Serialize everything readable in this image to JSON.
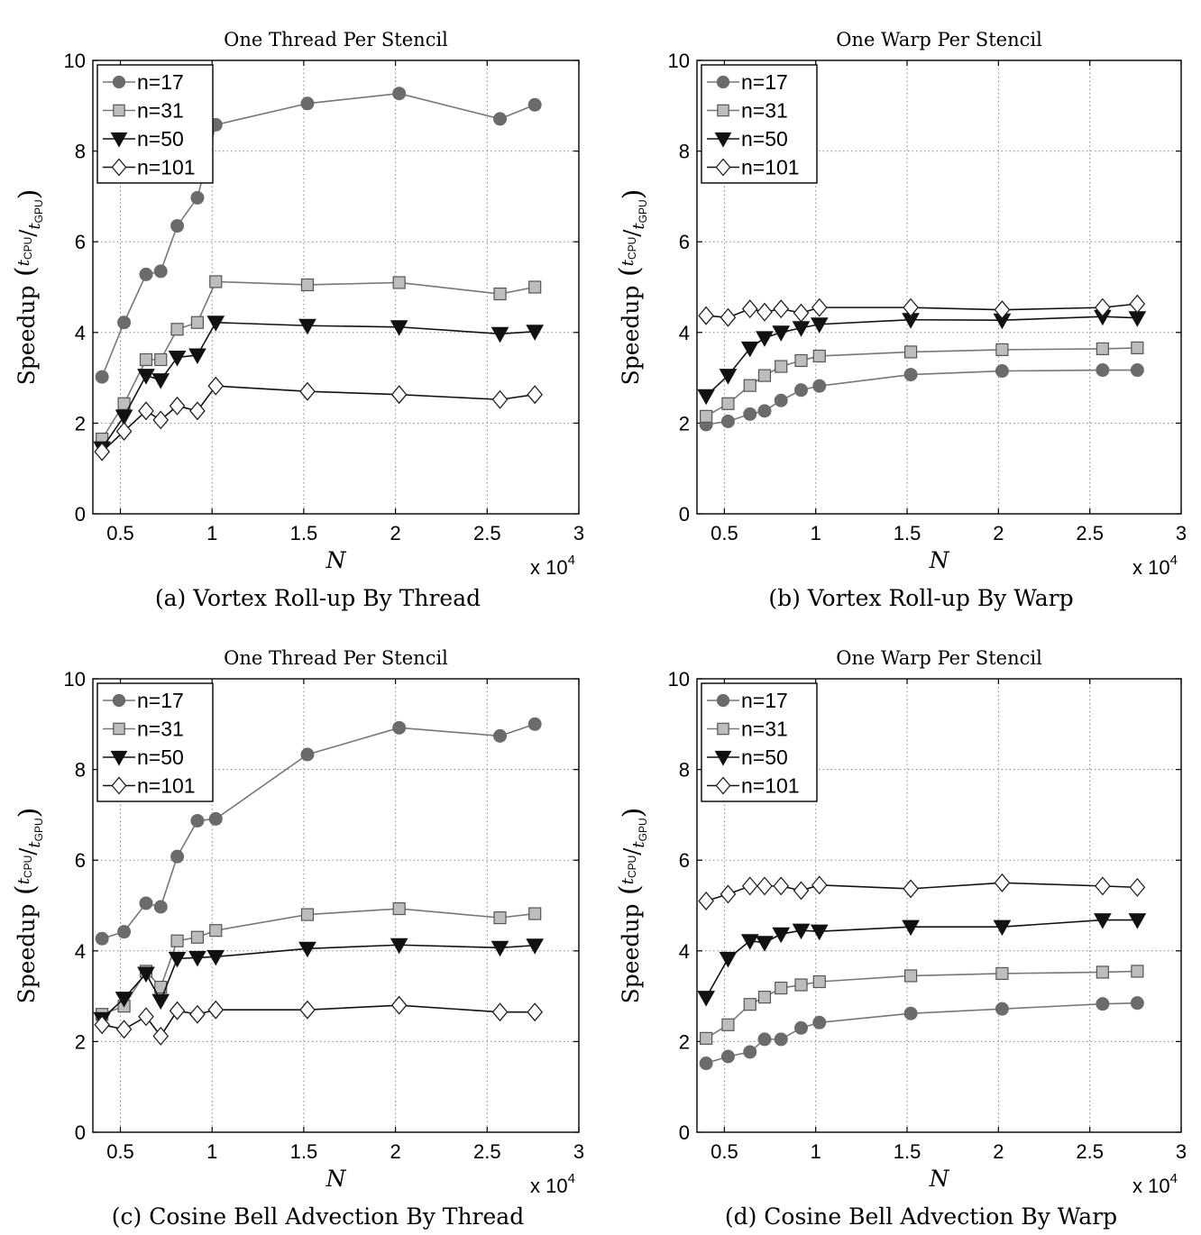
{
  "colors": {
    "n17": "#6b6b6b",
    "n31": "#bdbdbd",
    "n50": "#111111",
    "n101": "#ffffff",
    "line_light": "#777777",
    "line_dark": "#111111",
    "grid": "#888888"
  },
  "chart_data": [
    {
      "type": "line",
      "title": "One Thread Per Stencil",
      "caption": "(a)  Vortex Roll-up By Thread",
      "xlabel": "N",
      "ylabel": "Speedup",
      "ylabel_frac_num": "t",
      "ylabel_frac_num_sub": "CPU",
      "ylabel_frac_den": "t",
      "ylabel_frac_den_sub": "GPU",
      "x_multiplier": "x 10",
      "x_multiplier_exp": "4",
      "xlim": [
        0.35,
        3.0
      ],
      "ylim": [
        0,
        10
      ],
      "xticks": [
        0.5,
        1,
        1.5,
        2,
        2.5,
        3
      ],
      "xtick_labels": [
        "0.5",
        "1",
        "1.5",
        "2",
        "2.5",
        "3"
      ],
      "yticks": [
        0,
        2,
        4,
        6,
        8,
        10
      ],
      "ytick_labels": [
        "0",
        "2",
        "4",
        "6",
        "8",
        "10"
      ],
      "grid": true,
      "legend_position": "top-left",
      "x": [
        0.4,
        0.52,
        0.64,
        0.72,
        0.81,
        0.92,
        1.02,
        1.52,
        2.02,
        2.57,
        2.76
      ],
      "series": [
        {
          "name": "n=17",
          "marker": "circle",
          "values": [
            3.02,
            4.22,
            5.28,
            5.35,
            6.35,
            6.97,
            8.58,
            9.05,
            9.27,
            8.71,
            9.02
          ]
        },
        {
          "name": "n=31",
          "marker": "square",
          "values": [
            1.65,
            2.43,
            3.4,
            3.4,
            4.07,
            4.22,
            5.12,
            5.05,
            5.1,
            4.85,
            5.0
          ]
        },
        {
          "name": "n=50",
          "marker": "triangle-down",
          "values": [
            1.45,
            2.15,
            3.05,
            2.95,
            3.45,
            3.5,
            4.22,
            4.15,
            4.12,
            3.97,
            4.02
          ]
        },
        {
          "name": "n=101",
          "marker": "diamond",
          "values": [
            1.37,
            1.82,
            2.27,
            2.07,
            2.38,
            2.27,
            2.82,
            2.7,
            2.63,
            2.52,
            2.63
          ]
        }
      ]
    },
    {
      "type": "line",
      "title": "One Warp Per Stencil",
      "caption": "(b)  Vortex Roll-up By Warp",
      "xlabel": "N",
      "ylabel": "Speedup",
      "ylabel_frac_num": "t",
      "ylabel_frac_num_sub": "CPU",
      "ylabel_frac_den": "t",
      "ylabel_frac_den_sub": "GPU",
      "x_multiplier": "x 10",
      "x_multiplier_exp": "4",
      "xlim": [
        0.35,
        3.0
      ],
      "ylim": [
        0,
        10
      ],
      "xticks": [
        0.5,
        1,
        1.5,
        2,
        2.5,
        3
      ],
      "xtick_labels": [
        "0.5",
        "1",
        "1.5",
        "2",
        "2.5",
        "3"
      ],
      "yticks": [
        0,
        2,
        4,
        6,
        8,
        10
      ],
      "ytick_labels": [
        "0",
        "2",
        "4",
        "6",
        "8",
        "10"
      ],
      "grid": true,
      "legend_position": "top-left",
      "x": [
        0.4,
        0.52,
        0.64,
        0.72,
        0.81,
        0.92,
        1.02,
        1.52,
        2.02,
        2.57,
        2.76
      ],
      "series": [
        {
          "name": "n=17",
          "marker": "circle",
          "values": [
            1.97,
            2.04,
            2.2,
            2.27,
            2.5,
            2.73,
            2.82,
            3.07,
            3.15,
            3.17,
            3.17
          ]
        },
        {
          "name": "n=31",
          "marker": "square",
          "values": [
            2.15,
            2.43,
            2.83,
            3.05,
            3.25,
            3.38,
            3.48,
            3.57,
            3.62,
            3.64,
            3.66
          ]
        },
        {
          "name": "n=50",
          "marker": "triangle-down",
          "values": [
            2.6,
            3.05,
            3.65,
            3.88,
            4.0,
            4.1,
            4.18,
            4.28,
            4.27,
            4.35,
            4.32
          ]
        },
        {
          "name": "n=101",
          "marker": "diamond",
          "values": [
            4.37,
            4.33,
            4.52,
            4.45,
            4.52,
            4.43,
            4.55,
            4.55,
            4.5,
            4.55,
            4.63
          ]
        }
      ]
    },
    {
      "type": "line",
      "title": "One Thread Per Stencil",
      "caption": "(c)  Cosine Bell Advection By Thread",
      "xlabel": "N",
      "ylabel": "Speedup",
      "ylabel_frac_num": "t",
      "ylabel_frac_num_sub": "CPU",
      "ylabel_frac_den": "t",
      "ylabel_frac_den_sub": "GPU",
      "x_multiplier": "x 10",
      "x_multiplier_exp": "4",
      "xlim": [
        0.35,
        3.0
      ],
      "ylim": [
        0,
        10
      ],
      "xticks": [
        0.5,
        1,
        1.5,
        2,
        2.5,
        3
      ],
      "xtick_labels": [
        "0.5",
        "1",
        "1.5",
        "2",
        "2.5",
        "3"
      ],
      "yticks": [
        0,
        2,
        4,
        6,
        8,
        10
      ],
      "ytick_labels": [
        "0",
        "2",
        "4",
        "6",
        "8",
        "10"
      ],
      "grid": true,
      "legend_position": "top-left",
      "x": [
        0.4,
        0.52,
        0.64,
        0.72,
        0.81,
        0.92,
        1.02,
        1.52,
        2.02,
        2.57,
        2.76
      ],
      "series": [
        {
          "name": "n=17",
          "marker": "circle",
          "values": [
            4.27,
            4.42,
            5.05,
            4.97,
            6.08,
            6.87,
            6.91,
            8.33,
            8.92,
            8.74,
            9.0
          ]
        },
        {
          "name": "n=31",
          "marker": "square",
          "values": [
            2.6,
            2.78,
            3.55,
            3.2,
            4.22,
            4.3,
            4.45,
            4.8,
            4.93,
            4.73,
            4.82
          ]
        },
        {
          "name": "n=50",
          "marker": "triangle-down",
          "values": [
            2.5,
            2.95,
            3.5,
            2.9,
            3.83,
            3.85,
            3.87,
            4.05,
            4.13,
            4.07,
            4.12
          ]
        },
        {
          "name": "n=101",
          "marker": "diamond",
          "values": [
            2.37,
            2.27,
            2.55,
            2.12,
            2.68,
            2.6,
            2.7,
            2.7,
            2.8,
            2.65,
            2.65
          ]
        }
      ]
    },
    {
      "type": "line",
      "title": "One Warp Per Stencil",
      "caption": "(d)  Cosine Bell Advection By Warp",
      "xlabel": "N",
      "ylabel": "Speedup",
      "ylabel_frac_num": "t",
      "ylabel_frac_num_sub": "CPU",
      "ylabel_frac_den": "t",
      "ylabel_frac_den_sub": "GPU",
      "x_multiplier": "x 10",
      "x_multiplier_exp": "4",
      "xlim": [
        0.35,
        3.0
      ],
      "ylim": [
        0,
        10
      ],
      "xticks": [
        0.5,
        1,
        1.5,
        2,
        2.5,
        3
      ],
      "xtick_labels": [
        "0.5",
        "1",
        "1.5",
        "2",
        "2.5",
        "3"
      ],
      "yticks": [
        0,
        2,
        4,
        6,
        8,
        10
      ],
      "ytick_labels": [
        "0",
        "2",
        "4",
        "6",
        "8",
        "10"
      ],
      "grid": true,
      "legend_position": "top-left",
      "x": [
        0.4,
        0.52,
        0.64,
        0.72,
        0.81,
        0.92,
        1.02,
        1.52,
        2.02,
        2.57,
        2.76
      ],
      "series": [
        {
          "name": "n=17",
          "marker": "circle",
          "values": [
            1.52,
            1.67,
            1.77,
            2.05,
            2.05,
            2.3,
            2.42,
            2.62,
            2.72,
            2.83,
            2.85
          ]
        },
        {
          "name": "n=31",
          "marker": "square",
          "values": [
            2.07,
            2.37,
            2.82,
            2.98,
            3.18,
            3.25,
            3.32,
            3.45,
            3.5,
            3.53,
            3.55
          ]
        },
        {
          "name": "n=50",
          "marker": "triangle-down",
          "values": [
            2.97,
            3.83,
            4.22,
            4.18,
            4.37,
            4.45,
            4.43,
            4.53,
            4.53,
            4.68,
            4.68
          ]
        },
        {
          "name": "n=101",
          "marker": "diamond",
          "values": [
            5.1,
            5.25,
            5.43,
            5.43,
            5.43,
            5.33,
            5.45,
            5.37,
            5.5,
            5.43,
            5.4
          ]
        }
      ]
    }
  ]
}
